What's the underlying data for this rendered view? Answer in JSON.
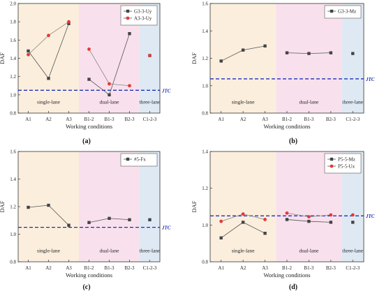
{
  "chart_data": [
    {
      "panel_label": "(a)",
      "type": "line",
      "ylabel": "DAF",
      "xlabel": "Working conditions",
      "ylim": [
        0.8,
        2.0
      ],
      "yticks": [
        "0.8",
        "1.0",
        "1.2",
        "1.4",
        "1.6",
        "1.8",
        "2.0"
      ],
      "categories": [
        "A1",
        "A2",
        "A3",
        "B1-2",
        "B1-3",
        "B2-3",
        "C1-2-3"
      ],
      "regions": [
        {
          "label": "single-lane",
          "from": 0,
          "to": 2,
          "color": "#fbeedd"
        },
        {
          "label": "dual-lane",
          "from": 3,
          "to": 5,
          "color": "#f8e1ec"
        },
        {
          "label": "three-lane",
          "from": 6,
          "to": 6,
          "color": "#dfe9f4"
        }
      ],
      "threshold": {
        "value": 1.05,
        "label": "JTC",
        "color": "#1b2fb5"
      },
      "legend_position": "top-right",
      "series": [
        {
          "name": "G3-3-Uy",
          "color": "#444444",
          "marker": "square",
          "values": [
            1.48,
            1.18,
            1.78,
            1.17,
            1.0,
            1.67,
            1.43
          ]
        },
        {
          "name": "A3-3-Uy",
          "color": "#e53935",
          "marker": "circle",
          "values": [
            1.44,
            1.65,
            1.8,
            1.5,
            1.12,
            1.1,
            1.43
          ]
        }
      ]
    },
    {
      "panel_label": "(b)",
      "type": "line",
      "ylabel": "DAF",
      "xlabel": "Working conditions",
      "ylim": [
        0.8,
        1.6
      ],
      "yticks": [
        "0.8",
        "1.0",
        "1.2",
        "1.4",
        "1.6"
      ],
      "categories": [
        "A1",
        "A2",
        "A3",
        "B1-2",
        "B1-3",
        "B2-3",
        "C1-2-3"
      ],
      "regions": [
        {
          "label": "single-lane",
          "from": 0,
          "to": 2,
          "color": "#fbeedd"
        },
        {
          "label": "dual-lane",
          "from": 3,
          "to": 5,
          "color": "#f8e1ec"
        },
        {
          "label": "three-lane",
          "from": 6,
          "to": 6,
          "color": "#dfe9f4"
        }
      ],
      "threshold": {
        "value": 1.05,
        "label": "JTC",
        "color": "#1b2fb5"
      },
      "legend_position": "top-right",
      "series": [
        {
          "name": "G3-3-Mz",
          "color": "#444444",
          "marker": "square",
          "values": [
            1.18,
            1.26,
            1.29,
            1.24,
            1.235,
            1.24,
            1.235
          ]
        }
      ]
    },
    {
      "panel_label": "(c)",
      "type": "line",
      "ylabel": "DAF",
      "xlabel": "Working conditions",
      "ylim": [
        0.8,
        1.6
      ],
      "yticks": [
        "0.8",
        "1.0",
        "1.2",
        "1.4",
        "1.6"
      ],
      "categories": [
        "A1",
        "A2",
        "A3",
        "B1-2",
        "B1-3",
        "B2-3",
        "C1-2-3"
      ],
      "regions": [
        {
          "label": "single-lane",
          "from": 0,
          "to": 2,
          "color": "#fbeedd"
        },
        {
          "label": "dual-lane",
          "from": 3,
          "to": 5,
          "color": "#f8e1ec"
        },
        {
          "label": "three-lane",
          "from": 6,
          "to": 6,
          "color": "#dfe9f4"
        }
      ],
      "threshold": {
        "value": 1.05,
        "label": "JTC",
        "color": "#1b2fb5"
      },
      "legend_position": "top-right",
      "series": [
        {
          "name": "#5-Fx",
          "color": "#444444",
          "marker": "square",
          "values": [
            1.195,
            1.21,
            1.065,
            1.085,
            1.115,
            1.105,
            1.105
          ]
        }
      ]
    },
    {
      "panel_label": "(d)",
      "type": "line",
      "ylabel": "DAF",
      "xlabel": "Working conditions",
      "ylim": [
        0.8,
        1.4
      ],
      "yticks": [
        "0.8",
        "1.0",
        "1.2",
        "1.4"
      ],
      "categories": [
        "A1",
        "A2",
        "A3",
        "B1-2",
        "B1-3",
        "B2-3",
        "C1-2-3"
      ],
      "regions": [
        {
          "label": "single-lane",
          "from": 0,
          "to": 2,
          "color": "#fbeedd"
        },
        {
          "label": "dual-lane",
          "from": 3,
          "to": 5,
          "color": "#f8e1ec"
        },
        {
          "label": "three-lane",
          "from": 6,
          "to": 6,
          "color": "#dfe9f4"
        }
      ],
      "threshold": {
        "value": 1.05,
        "label": "JTC",
        "color": "#1b2fb5"
      },
      "legend_position": "top-right",
      "series": [
        {
          "name": "P5-5-Mz",
          "color": "#444444",
          "marker": "square",
          "values": [
            0.93,
            1.015,
            0.955,
            1.03,
            1.02,
            1.015,
            1.015
          ]
        },
        {
          "name": "P5-5-Ux",
          "color": "#e53935",
          "marker": "circle",
          "values": [
            1.02,
            1.06,
            1.03,
            1.065,
            1.045,
            1.055,
            1.055
          ]
        }
      ]
    }
  ]
}
